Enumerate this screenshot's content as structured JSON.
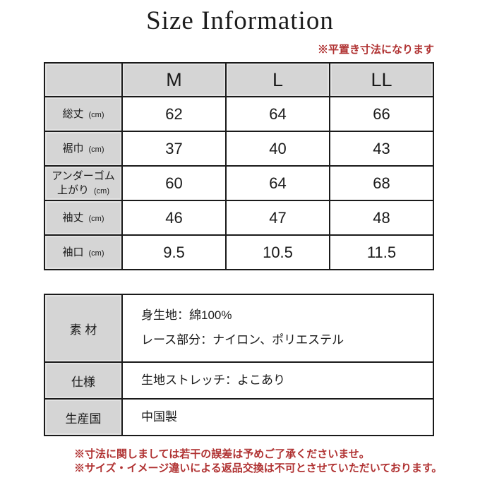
{
  "title": "Size Information",
  "top_note": "※平置き寸法になります",
  "size_table": {
    "unit": "(cm)",
    "columns": [
      "M",
      "L",
      "LL"
    ],
    "rows": [
      {
        "label": "総丈",
        "values": [
          "62",
          "64",
          "66"
        ]
      },
      {
        "label": "裾巾",
        "values": [
          "37",
          "40",
          "43"
        ]
      },
      {
        "label": "アンダーゴム上がり",
        "values": [
          "60",
          "64",
          "68"
        ]
      },
      {
        "label": "袖丈",
        "values": [
          "46",
          "47",
          "48"
        ]
      },
      {
        "label": "袖口",
        "values": [
          "9.5",
          "10.5",
          "11.5"
        ]
      }
    ]
  },
  "detail_table": {
    "rows": [
      {
        "label": "素 材",
        "lines": [
          "身生地：綿100%",
          "レース部分：ナイロン、ポリエステル"
        ]
      },
      {
        "label": "仕様",
        "lines": [
          "生地ストレッチ：よこあり"
        ]
      },
      {
        "label": "生産国",
        "lines": [
          "中国製"
        ]
      }
    ]
  },
  "footer_notes": [
    "※寸法に関しましては若干の誤差は予めご了承くださいませ。",
    "※サイズ・イメージ違いによる返品交換は不可とさせていただいております。"
  ],
  "colors": {
    "accent_red": "#b03232",
    "header_gray": "#d5d5d5",
    "border_black": "#1a1a1a"
  }
}
